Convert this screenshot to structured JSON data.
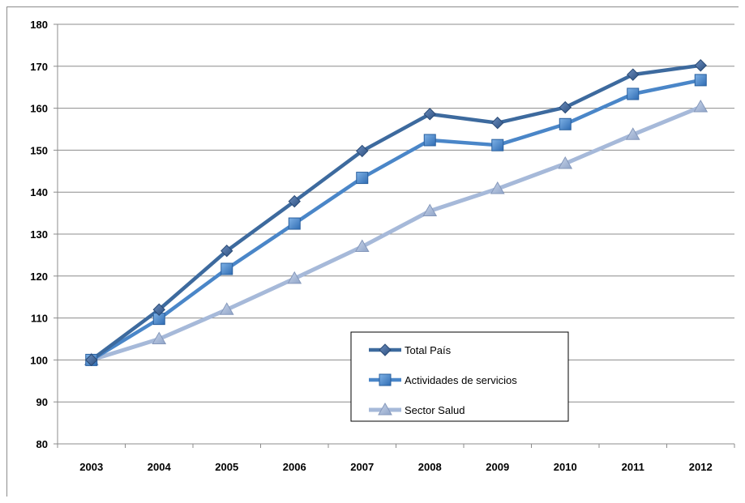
{
  "chart_data": {
    "type": "line",
    "title": "",
    "xlabel": "",
    "ylabel": "",
    "categories": [
      "2003",
      "2004",
      "2005",
      "2006",
      "2007",
      "2008",
      "2009",
      "2010",
      "2011",
      "2012"
    ],
    "ylim": [
      80,
      180
    ],
    "yticks": [
      80,
      90,
      100,
      110,
      120,
      130,
      140,
      150,
      160,
      170,
      180
    ],
    "grid": true,
    "legend_position": "center-right",
    "series": [
      {
        "name": "Total País",
        "marker": "diamond",
        "color": "#3d6a9e",
        "values": [
          100,
          112,
          126,
          137.8,
          149.8,
          158.6,
          156.5,
          160.2,
          168,
          170.2
        ]
      },
      {
        "name": "Actividades de servicios",
        "marker": "square",
        "color": "#4a86c8",
        "values": [
          100,
          109.8,
          121.7,
          132.5,
          143.4,
          152.4,
          151.2,
          156.2,
          163.4,
          166.7
        ]
      },
      {
        "name": "Sector Salud",
        "marker": "triangle",
        "color": "#a6b9d9",
        "values": [
          100,
          105,
          112,
          119.4,
          127,
          135.5,
          140.8,
          146.8,
          153.7,
          160.3
        ]
      }
    ]
  }
}
